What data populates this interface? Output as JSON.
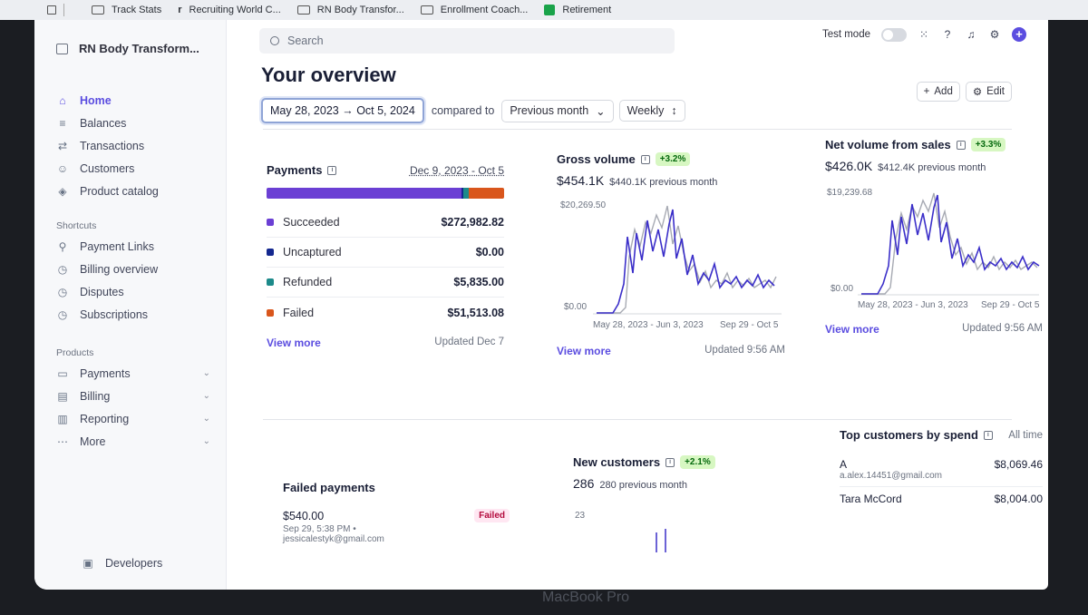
{
  "bookmarks": [
    "Track Stats",
    "Recruiting World C...",
    "RN Body Transfor...",
    "Enrollment Coach...",
    "Retirement"
  ],
  "sidebar": {
    "account_name": "RN Body Transform...",
    "nav": [
      {
        "label": "Home",
        "icon": "home-icon",
        "active": true
      },
      {
        "label": "Balances",
        "icon": "balances-icon"
      },
      {
        "label": "Transactions",
        "icon": "transactions-icon"
      },
      {
        "label": "Customers",
        "icon": "customers-icon"
      },
      {
        "label": "Product catalog",
        "icon": "product-catalog-icon"
      }
    ],
    "shortcuts_heading": "Shortcuts",
    "shortcuts": [
      {
        "label": "Payment Links",
        "icon": "link-icon"
      },
      {
        "label": "Billing overview",
        "icon": "clock-icon"
      },
      {
        "label": "Disputes",
        "icon": "clock-icon"
      },
      {
        "label": "Subscriptions",
        "icon": "clock-icon"
      }
    ],
    "products_heading": "Products",
    "products": [
      {
        "label": "Payments",
        "icon": "wallet-icon"
      },
      {
        "label": "Billing",
        "icon": "billing-icon"
      },
      {
        "label": "Reporting",
        "icon": "reporting-icon"
      },
      {
        "label": "More",
        "icon": "more-icon"
      }
    ],
    "developers": "Developers"
  },
  "topbar": {
    "search_placeholder": "Search",
    "test_mode": "Test mode"
  },
  "overview": {
    "title": "Your overview",
    "date_range": "May 28, 2023 → Oct 5, 2024",
    "compared_to": "compared to",
    "comparison": "Previous month",
    "interval": "Weekly",
    "add_label": "Add",
    "edit_label": "Edit"
  },
  "payments": {
    "title": "Payments",
    "range": "Dec 9, 2023 - Oct 5",
    "rows": [
      {
        "label": "Succeeded",
        "amount": "$272,982.82",
        "color": "#6b3fd4"
      },
      {
        "label": "Uncaptured",
        "amount": "$0.00",
        "color": "#14288f"
      },
      {
        "label": "Refunded",
        "amount": "$5,835.00",
        "color": "#1d8a8a"
      },
      {
        "label": "Failed",
        "amount": "$51,513.08",
        "color": "#d9561c"
      }
    ],
    "view_more": "View more",
    "updated": "Updated Dec 7"
  },
  "gross_volume": {
    "title": "Gross volume",
    "change": "+3.2%",
    "value": "$454.1K",
    "previous": "$440.1K previous month",
    "max_label": "$20,269.50",
    "min_label": "$0.00",
    "start_label": "May 28, 2023 - Jun 3, 2023",
    "end_label": "Sep 29 - Oct 5",
    "view_more": "View more",
    "updated": "Updated 9:56 AM"
  },
  "net_volume": {
    "title": "Net volume from sales",
    "change": "+3.3%",
    "value": "$426.0K",
    "previous": "$412.4K previous month",
    "max_label": "$19,239.68",
    "min_label": "$0.00",
    "start_label": "May 28, 2023 - Jun 3, 2023",
    "end_label": "Sep 29 - Oct 5",
    "view_more": "View more",
    "updated": "Updated 9:56 AM"
  },
  "failed_payments": {
    "title": "Failed payments",
    "amount": "$540.00",
    "status": "Failed",
    "time": "Sep 29, 5:38 PM •",
    "email": "jessicalestyk@gmail.com"
  },
  "new_customers": {
    "title": "New customers",
    "change": "+2.1%",
    "value": "286",
    "previous": "280 previous month",
    "max_label": "23"
  },
  "top_customers": {
    "title": "Top customers by spend",
    "range": "All time",
    "rows": [
      {
        "name": "A",
        "email": "a.alex.14451@gmail.com",
        "amount": "$8,069.46"
      },
      {
        "name": "Tara McCord",
        "email": "",
        "amount": "$8,004.00"
      }
    ]
  },
  "device_label": "MacBook Pro",
  "colors": {
    "accent": "#5b4de0",
    "series_current": "#3b2fc9",
    "series_previous": "#a7aab3"
  }
}
